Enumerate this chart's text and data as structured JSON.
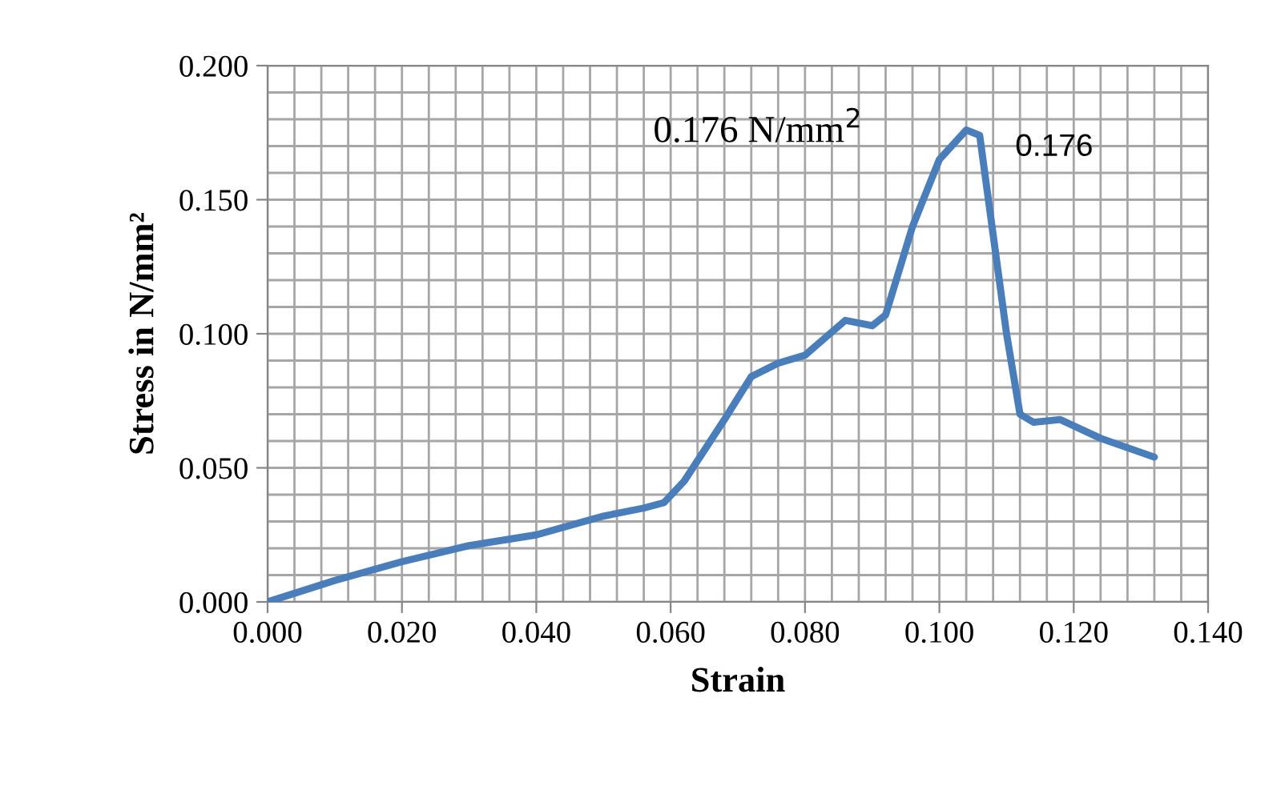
{
  "chart_data": {
    "type": "line",
    "xlabel": "Strain",
    "ylabel": "Stress in N/mm²",
    "x": [
      0,
      0.01,
      0.02,
      0.03,
      0.04,
      0.05,
      0.056,
      0.059,
      0.062,
      0.068,
      0.072,
      0.076,
      0.08,
      0.086,
      0.09,
      0.092,
      0.096,
      0.1,
      0.104,
      0.106,
      0.11,
      0.112,
      0.114,
      0.118,
      0.124,
      0.132
    ],
    "series": [
      {
        "color": "#4a7ebb",
        "values": [
          0,
          0.008,
          0.015,
          0.021,
          0.025,
          0.032,
          0.035,
          0.037,
          0.045,
          0.068,
          0.084,
          0.089,
          0.092,
          0.105,
          0.103,
          0.107,
          0.14,
          0.165,
          0.176,
          0.174,
          0.1,
          0.07,
          0.067,
          0.068,
          0.061,
          0.054
        ]
      }
    ],
    "xlim": [
      0,
      0.14
    ],
    "xticks": [
      {
        "value": 0,
        "label": "0.000"
      },
      {
        "value": 0.02,
        "label": "0.020"
      },
      {
        "value": 0.04,
        "label": "0.040"
      },
      {
        "value": 0.06,
        "label": "0.060"
      },
      {
        "value": 0.08,
        "label": "0.080"
      },
      {
        "value": 0.1,
        "label": "0.100"
      },
      {
        "value": 0.12,
        "label": "0.120"
      },
      {
        "value": 0.14,
        "label": "0.140"
      }
    ],
    "ylim": [
      0,
      0.2
    ],
    "yticks": [
      {
        "value": 0,
        "label": "0.000"
      },
      {
        "value": 0.05,
        "label": "0.050"
      },
      {
        "value": 0.1,
        "label": "0.100"
      },
      {
        "value": 0.15,
        "label": "0.150"
      },
      {
        "value": 0.2,
        "label": "0.200"
      }
    ],
    "grid": true,
    "legend": false,
    "marker": "none",
    "line_style": "solid",
    "annotations": [
      "0.176 N/mm$^{2}$",
      {
        "text": "0.176",
        "x": 0.104,
        "y": 0.176
      }
    ]
  }
}
